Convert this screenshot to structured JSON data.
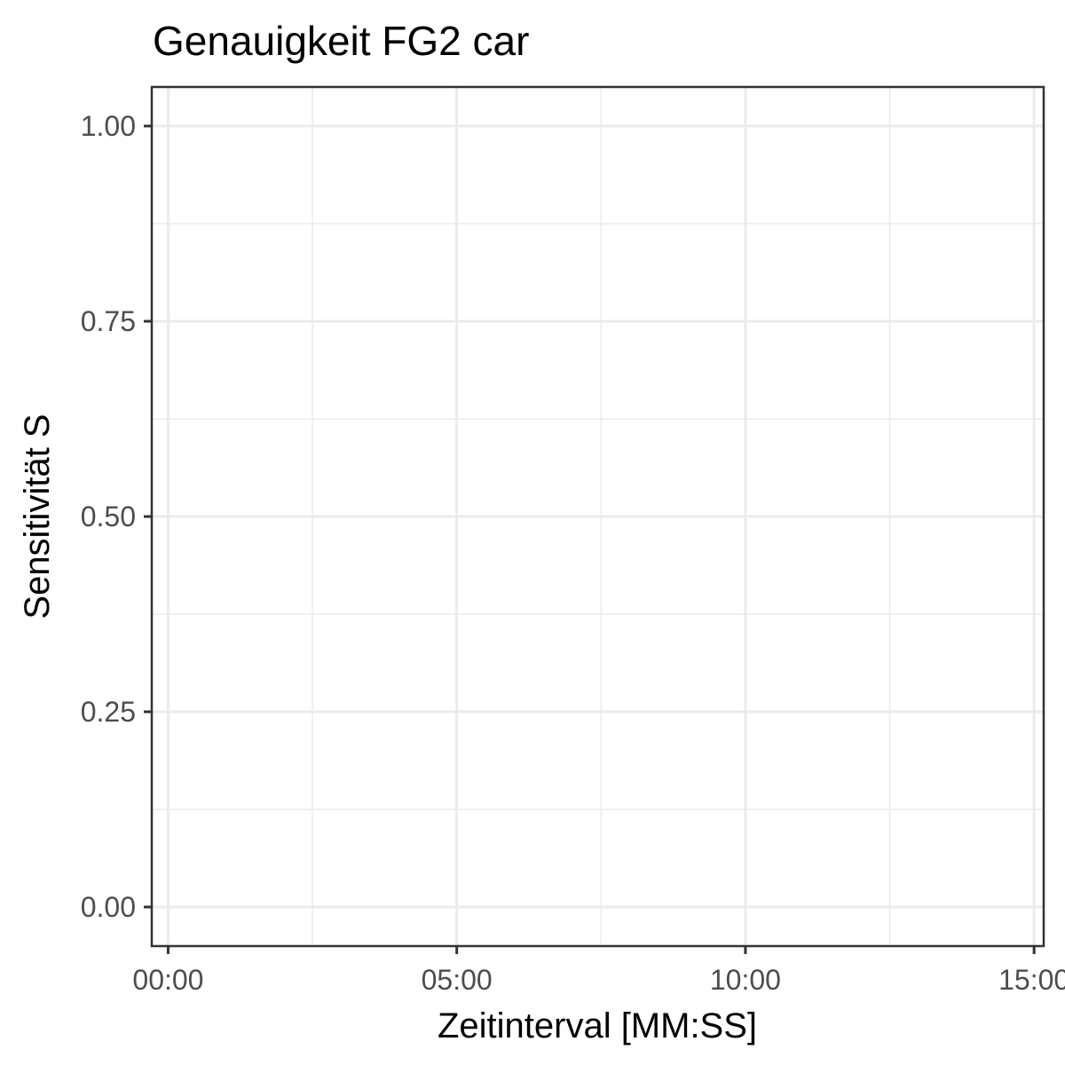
{
  "chart_data": {
    "type": "line",
    "title": "Genauigkeit FG2 car",
    "xlabel": "Zeitinterval [MM:SS]",
    "ylabel": "Sensitivität S",
    "x_tick_labels": [
      "00:00",
      "05:00",
      "10:00",
      "15:00"
    ],
    "y_tick_labels": [
      "0.00",
      "0.25",
      "0.50",
      "0.75",
      "1.00"
    ],
    "x_ticks_seconds": [
      0,
      300,
      600,
      900
    ],
    "y_ticks": [
      0,
      0.25,
      0.5,
      0.75,
      1.0
    ],
    "xlim_seconds": [
      -17,
      910
    ],
    "ylim": [
      -0.05,
      1.05
    ],
    "grid": true,
    "series": []
  }
}
